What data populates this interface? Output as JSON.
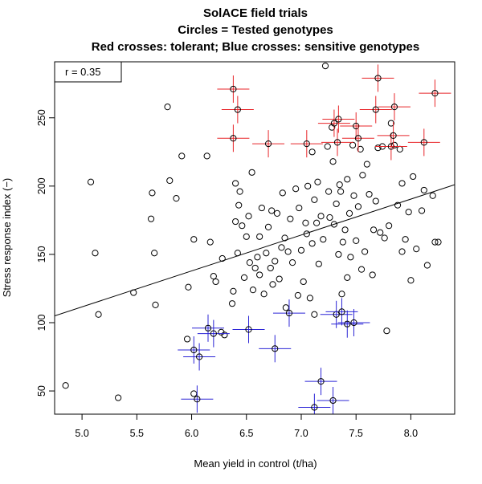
{
  "chart_data": {
    "type": "scatter",
    "title_lines": [
      "SolACE field trials",
      "Circles = Tested genotypes",
      "Red crosses: tolerant; Blue crosses: sensitive genotypes"
    ],
    "xlabel": "Mean yield in control (t/ha)",
    "ylabel": "Stress response index (−)",
    "xlim": [
      4.75,
      8.4
    ],
    "ylim": [
      33,
      291
    ],
    "x_ticks": [
      "5.0",
      "5.5",
      "6.0",
      "6.5",
      "7.0",
      "7.5",
      "8.0"
    ],
    "y_ticks": [
      "50",
      "100",
      "150",
      "200",
      "250"
    ],
    "legend_text": "r = 0.35",
    "regression_line": {
      "x": [
        4.75,
        8.4
      ],
      "y": [
        105,
        201
      ]
    },
    "colors": {
      "tolerant": "#e8262a",
      "sensitive": "#2b24d6",
      "points": "#000000",
      "line": "#000000"
    },
    "series": [
      {
        "role": "tested",
        "marker": "circle",
        "points": [
          [
            4.85,
            54
          ],
          [
            5.08,
            203
          ],
          [
            5.12,
            151
          ],
          [
            5.15,
            106
          ],
          [
            5.33,
            45
          ],
          [
            5.47,
            122
          ],
          [
            5.63,
            176
          ],
          [
            5.64,
            195
          ],
          [
            5.66,
            151
          ],
          [
            5.67,
            113
          ],
          [
            5.78,
            258
          ],
          [
            5.8,
            204
          ],
          [
            5.86,
            191
          ],
          [
            5.91,
            222
          ],
          [
            5.96,
            88
          ],
          [
            5.97,
            126
          ],
          [
            6.02,
            161
          ],
          [
            6.02,
            48
          ],
          [
            6.14,
            222
          ],
          [
            6.17,
            159
          ],
          [
            6.2,
            134
          ],
          [
            6.22,
            130
          ],
          [
            6.27,
            93
          ],
          [
            6.3,
            91
          ],
          [
            6.37,
            114
          ],
          [
            6.38,
            123
          ],
          [
            6.4,
            202
          ],
          [
            6.4,
            174
          ],
          [
            6.42,
            151
          ],
          [
            6.43,
            186
          ],
          [
            6.44,
            196
          ],
          [
            6.46,
            171
          ],
          [
            6.48,
            133
          ],
          [
            6.5,
            163
          ],
          [
            6.52,
            178
          ],
          [
            6.53,
            144
          ],
          [
            6.55,
            210
          ],
          [
            6.56,
            124
          ],
          [
            6.58,
            140
          ],
          [
            6.6,
            148
          ],
          [
            6.62,
            163
          ],
          [
            6.64,
            184
          ],
          [
            6.66,
            121
          ],
          [
            6.68,
            151
          ],
          [
            6.7,
            170
          ],
          [
            6.72,
            140
          ],
          [
            6.73,
            182
          ],
          [
            6.74,
            128
          ],
          [
            6.76,
            145
          ],
          [
            6.78,
            180
          ],
          [
            6.8,
            132
          ],
          [
            6.82,
            155
          ],
          [
            6.83,
            195
          ],
          [
            6.85,
            162
          ],
          [
            6.88,
            152
          ],
          [
            6.9,
            176
          ],
          [
            6.92,
            144
          ],
          [
            6.95,
            198
          ],
          [
            6.97,
            120
          ],
          [
            6.98,
            184
          ],
          [
            7.0,
            153
          ],
          [
            7.02,
            130
          ],
          [
            7.04,
            173
          ],
          [
            7.05,
            165
          ],
          [
            7.06,
            200
          ],
          [
            7.08,
            118
          ],
          [
            7.1,
            158
          ],
          [
            7.1,
            225
          ],
          [
            7.12,
            190
          ],
          [
            7.14,
            173
          ],
          [
            7.15,
            203
          ],
          [
            7.16,
            143
          ],
          [
            7.18,
            178
          ],
          [
            7.2,
            161
          ],
          [
            7.22,
            288
          ],
          [
            7.24,
            229
          ],
          [
            7.25,
            196
          ],
          [
            7.28,
            243
          ],
          [
            7.29,
            218
          ],
          [
            7.3,
            172
          ],
          [
            7.32,
            187
          ],
          [
            7.34,
            150
          ],
          [
            7.35,
            201
          ],
          [
            7.36,
            196
          ],
          [
            7.37,
            121
          ],
          [
            7.38,
            159
          ],
          [
            7.4,
            168
          ],
          [
            7.42,
            133
          ],
          [
            7.44,
            180
          ],
          [
            7.45,
            148
          ],
          [
            7.47,
            230
          ],
          [
            7.48,
            193
          ],
          [
            7.5,
            160
          ],
          [
            7.52,
            185
          ],
          [
            7.54,
            227
          ],
          [
            7.55,
            139
          ],
          [
            7.58,
            152
          ],
          [
            7.6,
            216
          ],
          [
            7.62,
            194
          ],
          [
            7.65,
            135
          ],
          [
            7.66,
            168
          ],
          [
            7.68,
            189
          ],
          [
            7.7,
            228
          ],
          [
            7.72,
            166
          ],
          [
            7.74,
            229
          ],
          [
            7.76,
            162
          ],
          [
            7.78,
            94
          ],
          [
            7.8,
            171
          ],
          [
            7.82,
            246
          ],
          [
            7.85,
            230
          ],
          [
            7.88,
            186
          ],
          [
            7.9,
            227
          ],
          [
            7.92,
            152
          ],
          [
            7.95,
            161
          ],
          [
            7.98,
            181
          ],
          [
            8.0,
            131
          ],
          [
            8.02,
            207
          ],
          [
            8.05,
            154
          ],
          [
            8.1,
            182
          ],
          [
            8.12,
            197
          ],
          [
            8.15,
            142
          ],
          [
            8.2,
            193
          ],
          [
            8.22,
            159
          ],
          [
            8.25,
            159
          ],
          [
            6.28,
            147
          ],
          [
            6.62,
            135
          ],
          [
            6.86,
            111
          ],
          [
            7.12,
            106
          ],
          [
            7.26,
            177
          ],
          [
            7.42,
            205
          ],
          [
            7.56,
            208
          ],
          [
            7.92,
            202
          ]
        ]
      },
      {
        "role": "tolerant",
        "marker": "cross",
        "points": [
          [
            6.38,
            271
          ],
          [
            6.42,
            256
          ],
          [
            6.38,
            235
          ],
          [
            6.7,
            231
          ],
          [
            7.05,
            231
          ],
          [
            7.33,
            232
          ],
          [
            7.34,
            249
          ],
          [
            7.3,
            246
          ],
          [
            7.5,
            244
          ],
          [
            7.52,
            235
          ],
          [
            7.68,
            256
          ],
          [
            7.7,
            279
          ],
          [
            7.82,
            229
          ],
          [
            7.84,
            237
          ],
          [
            7.85,
            258
          ],
          [
            8.12,
            232
          ],
          [
            8.22,
            268
          ]
        ]
      },
      {
        "role": "sensitive",
        "marker": "cross",
        "points": [
          [
            6.05,
            44
          ],
          [
            6.02,
            80
          ],
          [
            6.07,
            75
          ],
          [
            6.15,
            96
          ],
          [
            6.2,
            92
          ],
          [
            6.52,
            95
          ],
          [
            6.76,
            81
          ],
          [
            6.89,
            107
          ],
          [
            7.12,
            38
          ],
          [
            7.18,
            57
          ],
          [
            7.29,
            43
          ],
          [
            7.32,
            106
          ],
          [
            7.37,
            108
          ],
          [
            7.42,
            99
          ],
          [
            7.48,
            100
          ]
        ]
      }
    ]
  }
}
